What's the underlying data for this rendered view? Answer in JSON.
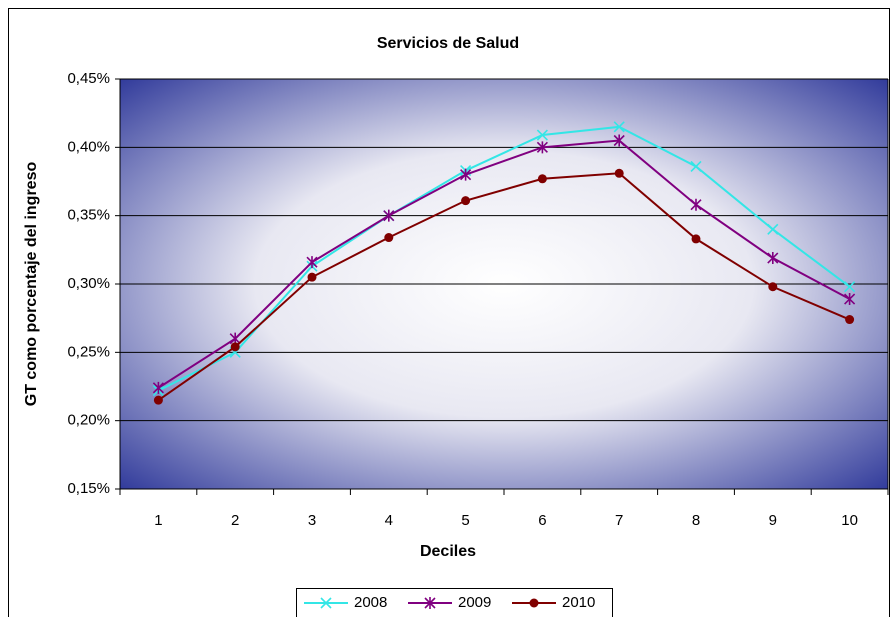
{
  "chart_data": {
    "type": "line",
    "title": "Servicios de Salud",
    "x_label": "Deciles",
    "y_label": "GT como porcentaje del ingreso",
    "categories": [
      "1",
      "2",
      "3",
      "4",
      "5",
      "6",
      "7",
      "8",
      "9",
      "10"
    ],
    "series": [
      {
        "name": "2008",
        "color": "#33e6e6",
        "marker": "x",
        "values": [
          0.222,
          0.25,
          0.313,
          0.35,
          0.383,
          0.409,
          0.415,
          0.386,
          0.34,
          0.298
        ]
      },
      {
        "name": "2009",
        "color": "#800080",
        "marker": "star",
        "values": [
          0.224,
          0.26,
          0.316,
          0.35,
          0.38,
          0.4,
          0.405,
          0.358,
          0.319,
          0.289
        ]
      },
      {
        "name": "2010",
        "color": "#800000",
        "marker": "circle",
        "values": [
          0.215,
          0.254,
          0.305,
          0.334,
          0.361,
          0.377,
          0.381,
          0.333,
          0.298,
          0.274
        ]
      }
    ],
    "ylim": [
      0.15,
      0.45
    ],
    "yticks": [
      {
        "value": 0.15,
        "label": "0,15%"
      },
      {
        "value": 0.2,
        "label": "0,20%"
      },
      {
        "value": 0.25,
        "label": "0,25%"
      },
      {
        "value": 0.3,
        "label": "0,30%"
      },
      {
        "value": 0.35,
        "label": "0,35%"
      },
      {
        "value": 0.4,
        "label": "0,40%"
      },
      {
        "value": 0.45,
        "label": "0,45%"
      }
    ],
    "grid": true,
    "legend": "bottom"
  }
}
